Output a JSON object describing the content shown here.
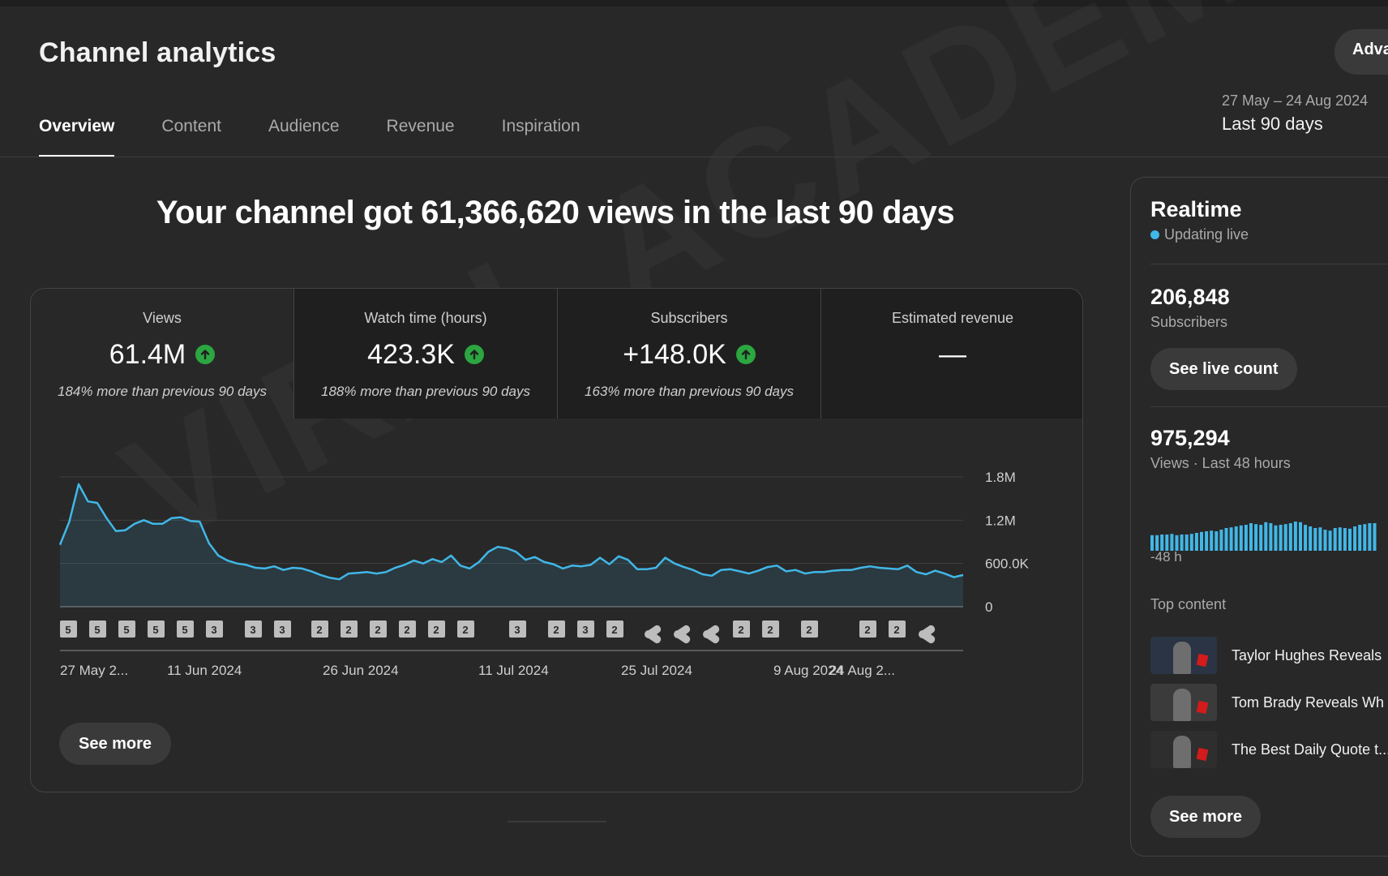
{
  "page": {
    "title": "Channel analytics",
    "advanced_label": "Advanced mode"
  },
  "tabs": [
    {
      "label": "Overview",
      "active": true
    },
    {
      "label": "Content",
      "active": false
    },
    {
      "label": "Audience",
      "active": false
    },
    {
      "label": "Revenue",
      "active": false
    },
    {
      "label": "Inspiration",
      "active": false
    }
  ],
  "date": {
    "range": "27 May – 24 Aug 2024",
    "label": "Last 90 days"
  },
  "headline": "Your channel got 61,366,620 views in the last 90 days",
  "metrics": [
    {
      "label": "Views",
      "value": "61.4M",
      "trend": "up",
      "sub": "184% more than previous 90 days"
    },
    {
      "label": "Watch time (hours)",
      "value": "423.3K",
      "trend": "up",
      "sub": "188% more than previous 90 days"
    },
    {
      "label": "Subscribers",
      "value": "+148.0K",
      "trend": "up",
      "sub": "163% more than previous 90 days"
    },
    {
      "label": "Estimated revenue",
      "value": "—",
      "trend": "",
      "sub": ""
    }
  ],
  "chart_data": {
    "type": "area",
    "series_color": "#41b7e7",
    "y_ticks": [
      "1.8M",
      "1.2M",
      "600.0K",
      "0"
    ],
    "ylim": [
      0,
      1800000
    ],
    "x_labels": [
      "27 May 2...",
      "11 Jun 2024",
      "26 Jun 2024",
      "11 Jul 2024",
      "25 Jul 2024",
      "9 Aug 2024",
      "24 Aug 2..."
    ],
    "values": [
      860000,
      1180000,
      1700000,
      1460000,
      1440000,
      1230000,
      1050000,
      1060000,
      1150000,
      1200000,
      1150000,
      1150000,
      1230000,
      1240000,
      1190000,
      1180000,
      880000,
      710000,
      640000,
      600000,
      580000,
      540000,
      530000,
      560000,
      510000,
      540000,
      530000,
      490000,
      440000,
      400000,
      380000,
      460000,
      470000,
      480000,
      460000,
      480000,
      540000,
      580000,
      640000,
      600000,
      660000,
      620000,
      710000,
      570000,
      530000,
      620000,
      760000,
      830000,
      810000,
      760000,
      650000,
      690000,
      620000,
      590000,
      530000,
      570000,
      560000,
      580000,
      680000,
      590000,
      700000,
      650000,
      520000,
      520000,
      540000,
      680000,
      600000,
      550000,
      510000,
      450000,
      430000,
      510000,
      520000,
      490000,
      460000,
      500000,
      550000,
      570000,
      490000,
      510000,
      460000,
      480000,
      480000,
      500000,
      510000,
      510000,
      540000,
      560000,
      540000,
      530000,
      520000,
      570000,
      480000,
      450000,
      500000,
      460000,
      410000,
      440000
    ],
    "markers": [
      "5",
      "5",
      "5",
      "5",
      "5",
      "3",
      "3",
      "3",
      "2",
      "2",
      "2",
      "2",
      "2",
      "2",
      "3",
      "2",
      "3",
      "2",
      "shorts",
      "shorts",
      "shorts",
      "2",
      "2",
      "2",
      "2",
      "2",
      "shorts"
    ]
  },
  "see_more_label": "See more",
  "realtime": {
    "title": "Realtime",
    "status": "Updating live",
    "subscribers_value": "206,848",
    "subscribers_label": "Subscribers",
    "live_count_label": "See live count",
    "views_value": "975,294",
    "views_label": "Views · Last 48 hours",
    "bars": [
      0.48,
      0.48,
      0.5,
      0.5,
      0.52,
      0.48,
      0.5,
      0.5,
      0.52,
      0.55,
      0.58,
      0.6,
      0.62,
      0.6,
      0.65,
      0.7,
      0.72,
      0.75,
      0.78,
      0.8,
      0.85,
      0.82,
      0.8,
      0.88,
      0.85,
      0.78,
      0.8,
      0.82,
      0.85,
      0.9,
      0.88,
      0.8,
      0.75,
      0.7,
      0.72,
      0.65,
      0.62,
      0.7,
      0.72,
      0.7,
      0.68,
      0.75,
      0.8,
      0.82,
      0.85,
      0.85
    ],
    "bar_axis_label": "-48 h",
    "top_content_label": "Top content",
    "top_content": [
      {
        "title": "Taylor Hughes Reveals",
        "thumb_bg": "#2a3444"
      },
      {
        "title": "Tom Brady Reveals Wh",
        "thumb_bg": "#3b3b3b"
      },
      {
        "title": "The Best Daily Quote t...",
        "thumb_bg": "#2e2e2e"
      }
    ],
    "see_more_label": "See more"
  },
  "watermark": "VIRAL ACADEMY"
}
